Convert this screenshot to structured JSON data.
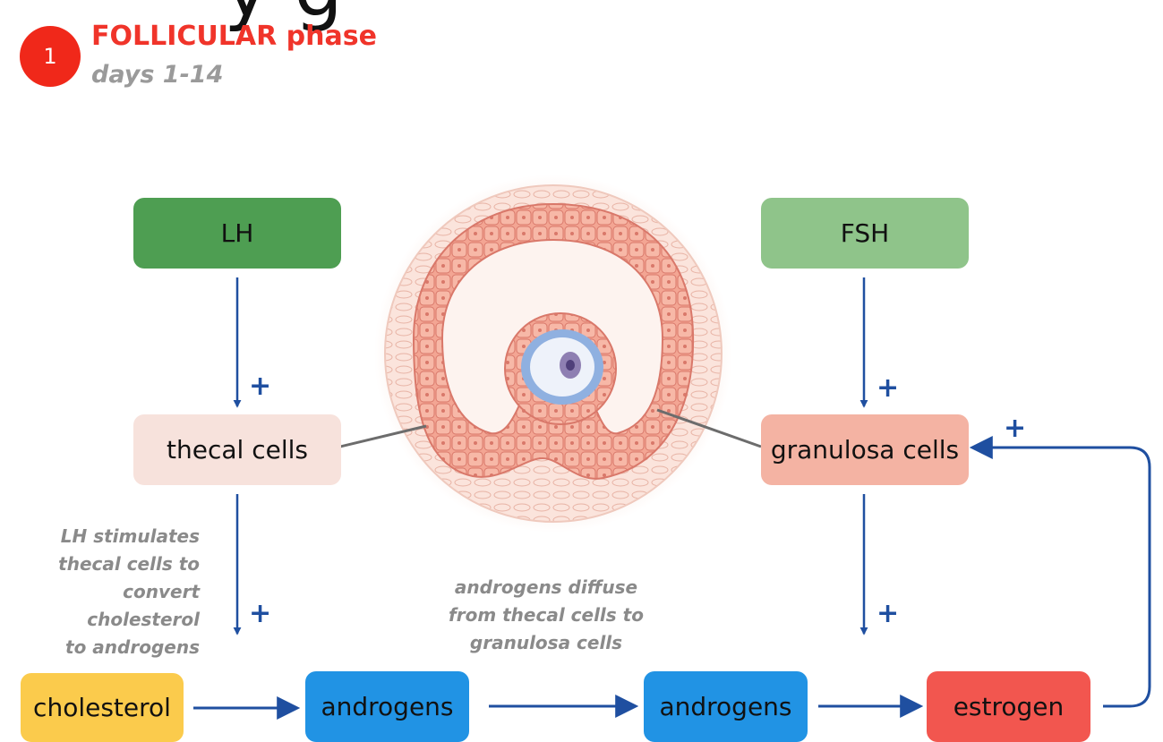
{
  "slide": {
    "cropped_title": "y  g",
    "step": {
      "number": "1",
      "title": "FOLLICULAR phase",
      "days": "days 1-14"
    },
    "colors": {
      "lh": "#4e9e52",
      "fsh": "#8fc48a",
      "thecal": "#f7e2dc",
      "granulosa": "#f4b3a3",
      "cholesterol": "#fbcb4c",
      "androgens": "#2193e4",
      "estrogen": "#f2564f",
      "arrow": "#1f4fa0"
    }
  },
  "boxes": {
    "lh": "LH",
    "fsh": "FSH",
    "thecal": "thecal cells",
    "granulosa": "granulosa cells",
    "cholesterol": "cholesterol",
    "androgens_thecal": "androgens",
    "androgens_granulosa": "androgens",
    "estrogen": "estrogen"
  },
  "notes": {
    "lh_stimulates": [
      "LH stimulates",
      "thecal cells to",
      "convert cholesterol",
      "to androgens"
    ],
    "diffuse": [
      "androgens diffuse",
      "from thecal cells to",
      "granulosa cells"
    ]
  },
  "signs": {
    "plus": "+"
  }
}
